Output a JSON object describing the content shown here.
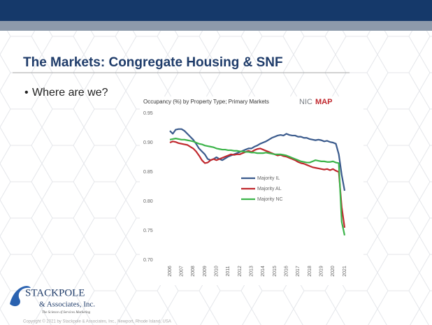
{
  "slide": {
    "title": "The Markets: Congregate Housing & SNF",
    "bullet": "Where are we?"
  },
  "chart_data": {
    "type": "line",
    "title": "Occupancy (%) by Property Type; Primary Markets",
    "source_logo": {
      "part1": "NIC",
      "part2": "MAP"
    },
    "categories": [
      "2006",
      null,
      null,
      null,
      "2007",
      null,
      null,
      null,
      "2008",
      null,
      null,
      null,
      "2009",
      null,
      null,
      null,
      "2010",
      null,
      null,
      null,
      "2011",
      null,
      null,
      null,
      "2012",
      null,
      null,
      null,
      "2013",
      null,
      null,
      null,
      "2014",
      null,
      null,
      null,
      "2015",
      null,
      null,
      null,
      "2016",
      null,
      null,
      null,
      "2017",
      null,
      null,
      null,
      "2018",
      null,
      null,
      null,
      "2019",
      null,
      null,
      null,
      "2020",
      null,
      null,
      null,
      "2021"
    ],
    "series": [
      {
        "name": "Majority IL",
        "color": "#3a5a8c",
        "values": [
          0.92,
          0.915,
          0.922,
          0.923,
          0.923,
          0.92,
          0.915,
          0.91,
          0.905,
          0.898,
          0.89,
          0.885,
          0.88,
          0.872,
          0.87,
          0.872,
          0.875,
          0.872,
          0.87,
          0.873,
          0.876,
          0.878,
          0.88,
          0.882,
          0.884,
          0.886,
          0.888,
          0.89,
          0.89,
          0.893,
          0.895,
          0.898,
          0.9,
          0.902,
          0.905,
          0.908,
          0.91,
          0.912,
          0.913,
          0.912,
          0.915,
          0.913,
          0.912,
          0.912,
          0.91,
          0.91,
          0.908,
          0.908,
          0.906,
          0.905,
          0.904,
          0.905,
          0.904,
          0.902,
          0.903,
          0.901,
          0.9,
          0.898,
          0.88,
          0.845,
          0.818
        ]
      },
      {
        "name": "Majority AL",
        "color": "#c0282e",
        "values": [
          0.9,
          0.902,
          0.901,
          0.899,
          0.898,
          0.897,
          0.896,
          0.893,
          0.89,
          0.885,
          0.878,
          0.87,
          0.865,
          0.866,
          0.87,
          0.872,
          0.87,
          0.872,
          0.874,
          0.876,
          0.878,
          0.88,
          0.879,
          0.88,
          0.88,
          0.882,
          0.884,
          0.886,
          0.884,
          0.887,
          0.889,
          0.89,
          0.888,
          0.886,
          0.884,
          0.882,
          0.88,
          0.878,
          0.879,
          0.877,
          0.876,
          0.874,
          0.872,
          0.87,
          0.867,
          0.865,
          0.864,
          0.862,
          0.86,
          0.858,
          0.857,
          0.856,
          0.855,
          0.854,
          0.855,
          0.853,
          0.855,
          0.852,
          0.85,
          0.79,
          0.755
        ]
      },
      {
        "name": "Majority NC",
        "color": "#3cb44a",
        "values": [
          0.905,
          0.906,
          0.907,
          0.906,
          0.905,
          0.905,
          0.904,
          0.903,
          0.902,
          0.9,
          0.898,
          0.897,
          0.895,
          0.894,
          0.893,
          0.892,
          0.89,
          0.889,
          0.888,
          0.888,
          0.887,
          0.887,
          0.886,
          0.886,
          0.885,
          0.885,
          0.884,
          0.884,
          0.883,
          0.883,
          0.882,
          0.882,
          0.882,
          0.883,
          0.882,
          0.881,
          0.88,
          0.88,
          0.88,
          0.879,
          0.878,
          0.876,
          0.874,
          0.872,
          0.87,
          0.868,
          0.867,
          0.866,
          0.866,
          0.868,
          0.87,
          0.869,
          0.868,
          0.868,
          0.867,
          0.867,
          0.868,
          0.866,
          0.865,
          0.765,
          0.742
        ]
      }
    ],
    "ylim": [
      0.7,
      0.95
    ],
    "yticks": [
      {
        "value": 0.7,
        "label": "0.70"
      },
      0.75,
      {
        "value": 0.8,
        "label": "0.80"
      },
      0.85,
      {
        "value": 0.9,
        "label": "0.90"
      },
      0.95
    ],
    "grid": false,
    "legend": "center"
  },
  "logo": {
    "name": "STACKPOLE",
    "sub": "& Associates, Inc.",
    "tagline": "The Science of Services Marketing"
  },
  "footer": "Copyright © 2021 by Stackpole & Associates, Inc., Newport, Rhode Island, USA"
}
